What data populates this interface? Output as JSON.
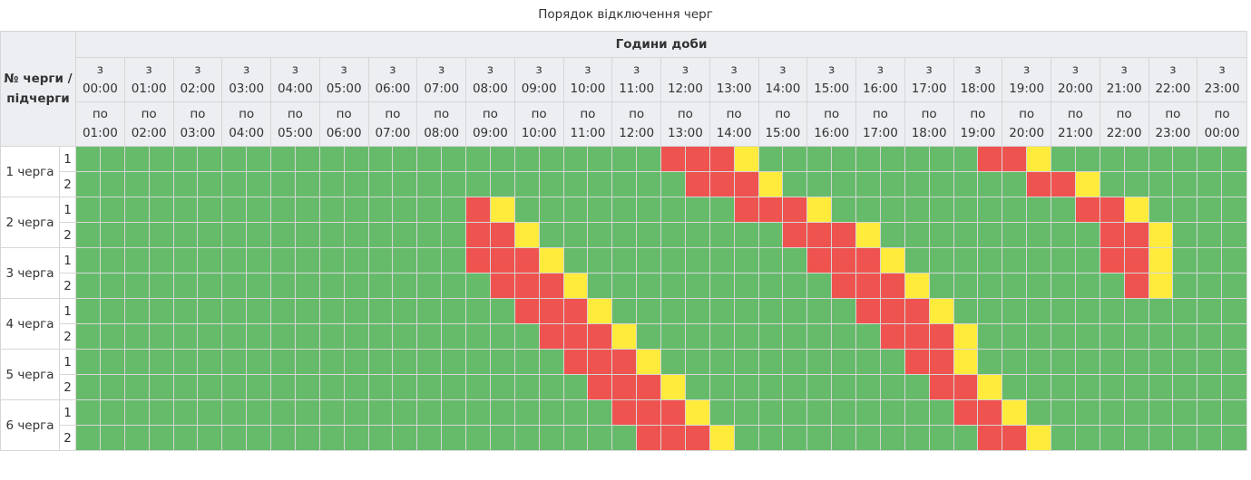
{
  "title": "Порядок відключення черг",
  "header": {
    "queue_label": "№ черги / підчерги",
    "hours_label": "Години доби",
    "from_prefix": "з",
    "to_prefix": "по",
    "from_times": [
      "00:00",
      "01:00",
      "02:00",
      "03:00",
      "04:00",
      "05:00",
      "06:00",
      "07:00",
      "08:00",
      "09:00",
      "10:00",
      "11:00",
      "12:00",
      "13:00",
      "14:00",
      "15:00",
      "16:00",
      "17:00",
      "18:00",
      "19:00",
      "20:00",
      "21:00",
      "22:00",
      "23:00"
    ],
    "to_times": [
      "01:00",
      "02:00",
      "03:00",
      "04:00",
      "05:00",
      "06:00",
      "07:00",
      "08:00",
      "09:00",
      "10:00",
      "11:00",
      "12:00",
      "13:00",
      "14:00",
      "15:00",
      "16:00",
      "17:00",
      "18:00",
      "19:00",
      "20:00",
      "21:00",
      "22:00",
      "23:00",
      "00:00"
    ]
  },
  "legend_colors": {
    "g": "#66bb6a",
    "r": "#ef5350",
    "y": "#ffeb3b"
  },
  "queues": [
    {
      "name": "1 черга",
      "subs": [
        {
          "num": "1",
          "slots": "ggggggggggggggggggggggggrrrygggggggggrrygggggggggg"
        },
        {
          "num": "2",
          "slots": "gggggggggggggggggggggggggrrryggggggggggrryggggggggg"
        }
      ]
    },
    {
      "name": "2 черга",
      "subs": [
        {
          "num": "1",
          "slots": "ggggggggggggggggrygggggggggrrryggggggggggrrygggggggg"
        },
        {
          "num": "2",
          "slots": "ggggggggggggggggrryggggggggggrrrygggggggggrryggggggg"
        }
      ]
    },
    {
      "name": "3 черга",
      "subs": [
        {
          "num": "1",
          "slots": "ggggggggggggggggrrryggggggggggrrryggggggggrrygggggg"
        },
        {
          "num": "2",
          "slots": "gggggggggggggggggrrryggggggggggrrryggggggggrygggggg"
        }
      ]
    },
    {
      "name": "4 черга",
      "subs": [
        {
          "num": "1",
          "slots": "ggggggggggggggggggrrryggggggggggrrryggggggggggggggg"
        },
        {
          "num": "2",
          "slots": "gggggggggggggggggggrrryggggggggggrrrygggggggggggggg"
        }
      ]
    },
    {
      "name": "5 черга",
      "subs": [
        {
          "num": "1",
          "slots": "ggggggggggggggggggggrrryggggggggggrryggggggggggggg"
        },
        {
          "num": "2",
          "slots": "gggggggggggggggggggggrrryggggggggggrrygggggggggggg"
        }
      ]
    },
    {
      "name": "6 черга",
      "subs": [
        {
          "num": "1",
          "slots": "ggggggggggggggggggggggrrryggggggggggrrygggggggggggg"
        },
        {
          "num": "2",
          "slots": "gggggggggggggggggggggggrrryggggggggggrryggggggggggg"
        }
      ]
    }
  ]
}
